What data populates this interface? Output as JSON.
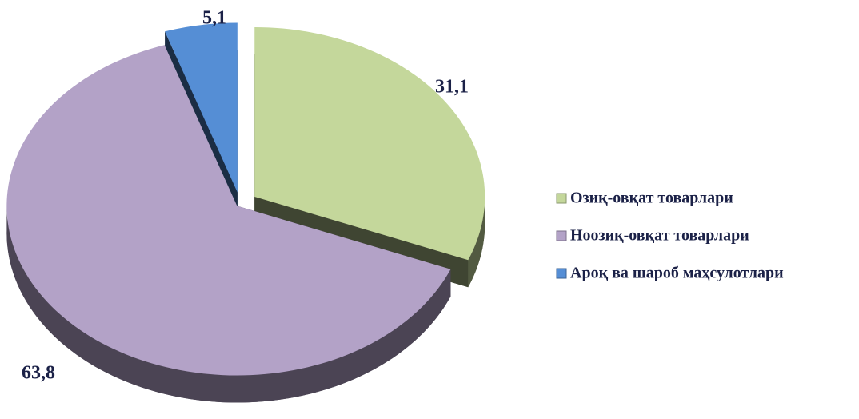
{
  "chart_data": {
    "type": "pie",
    "categories": [
      "Озиқ-овқат товарлари",
      "Ноозиқ-овқат товарлари",
      "Ароқ ва шароб маҳсулотлари"
    ],
    "values": [
      31.1,
      63.8,
      5.1
    ],
    "value_labels": [
      "31,1",
      "63,8",
      "5,1"
    ],
    "colors": [
      "#c4d79b",
      "#b3a2c7",
      "#558ed5"
    ],
    "legend": "right"
  }
}
